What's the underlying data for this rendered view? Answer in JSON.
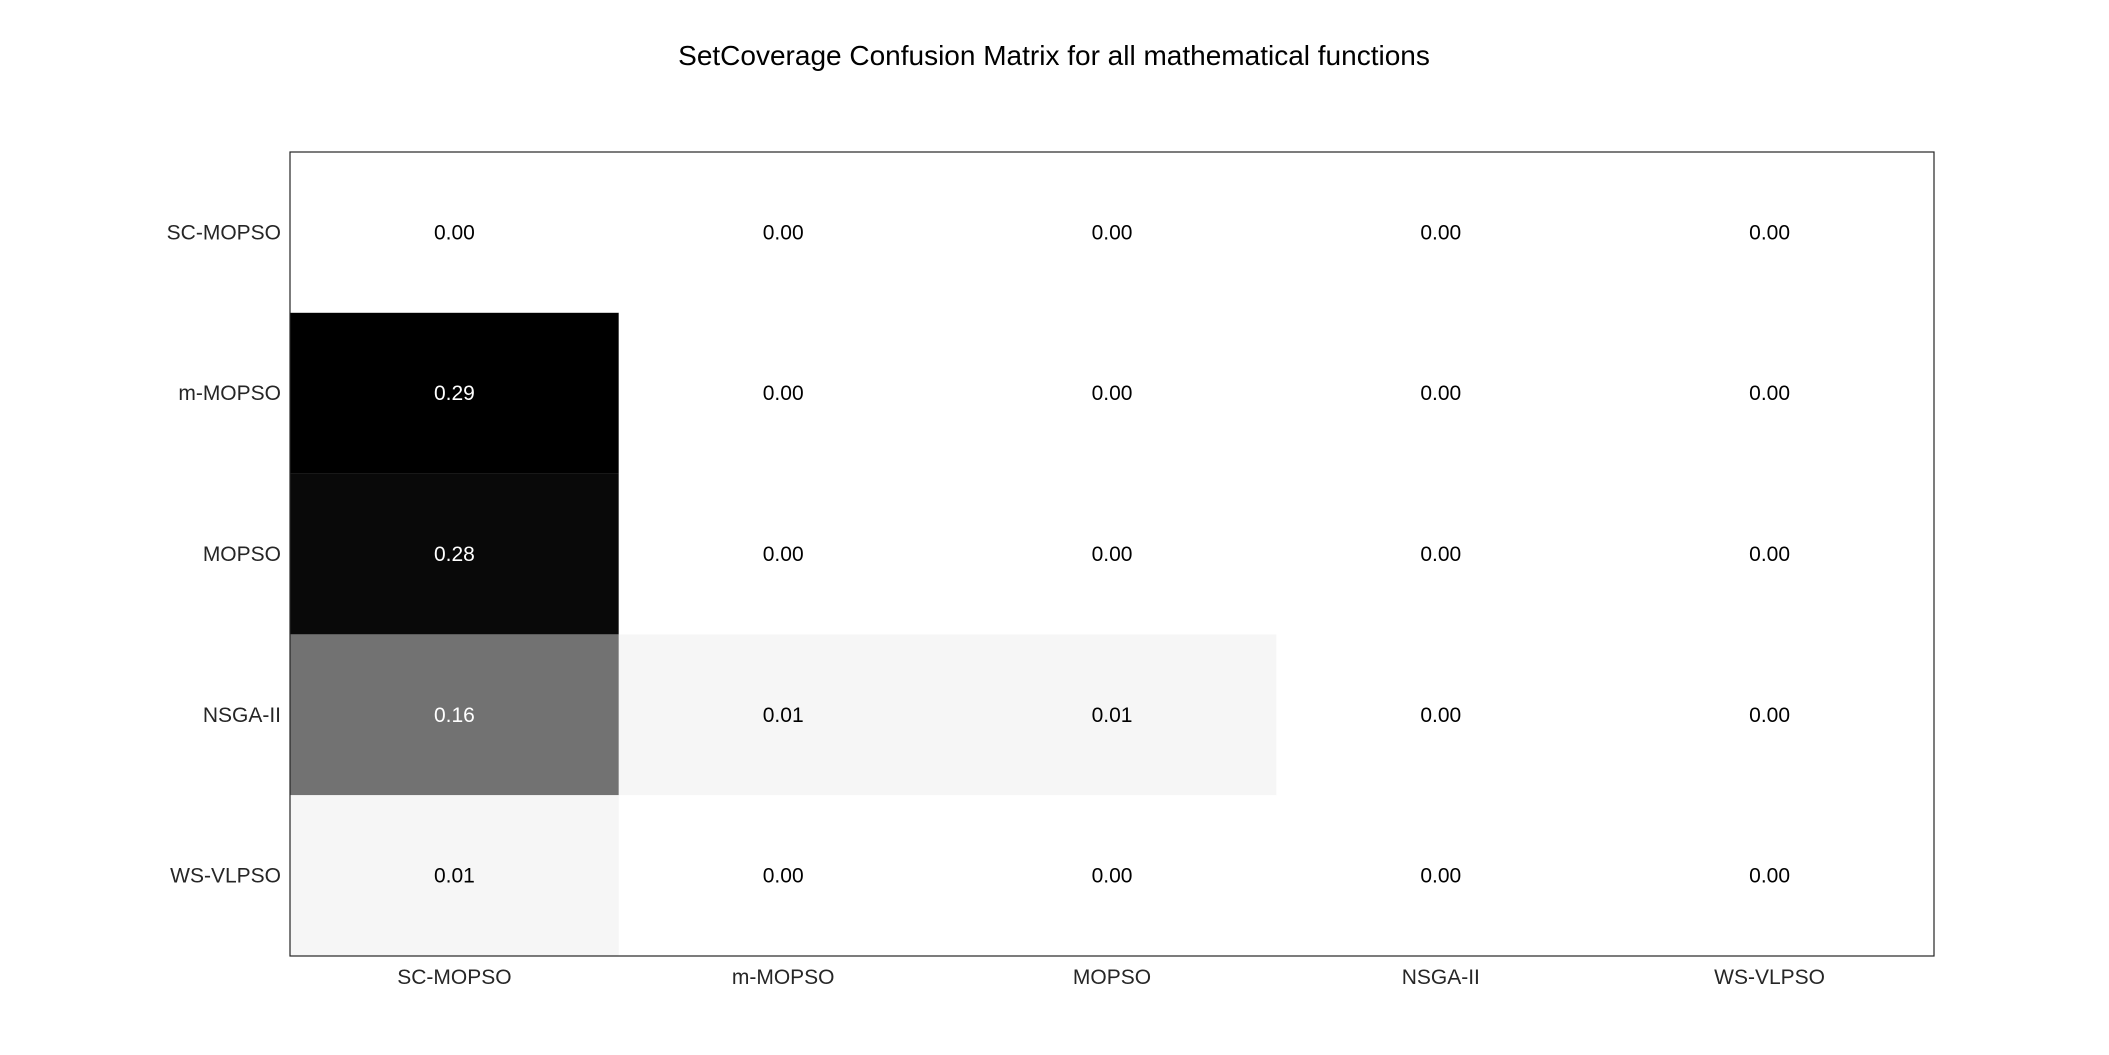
{
  "chart_data": {
    "type": "heatmap",
    "title": "SetCoverage Confusion Matrix for all mathematical functions",
    "xlabel": "",
    "ylabel": "",
    "x_categories": [
      "SC-MOPSO",
      "m-MOPSO",
      "MOPSO",
      "NSGA-II",
      "WS-VLPSO"
    ],
    "y_categories": [
      "SC-MOPSO",
      "m-MOPSO",
      "MOPSO",
      "NSGA-II",
      "WS-VLPSO"
    ],
    "values": [
      [
        0.0,
        0.0,
        0.0,
        0.0,
        0.0
      ],
      [
        0.29,
        0.0,
        0.0,
        0.0,
        0.0
      ],
      [
        0.28,
        0.0,
        0.0,
        0.0,
        0.0
      ],
      [
        0.16,
        0.01,
        0.01,
        0.0,
        0.0
      ],
      [
        0.01,
        0.0,
        0.0,
        0.0,
        0.0
      ]
    ],
    "cell_labels": [
      [
        "0.00",
        "0.00",
        "0.00",
        "0.00",
        "0.00"
      ],
      [
        "0.29",
        "0.00",
        "0.00",
        "0.00",
        "0.00"
      ],
      [
        "0.28",
        "0.00",
        "0.00",
        "0.00",
        "0.00"
      ],
      [
        "0.16",
        "0.01",
        "0.01",
        "0.00",
        "0.00"
      ],
      [
        "0.01",
        "0.00",
        "0.00",
        "0.00",
        "0.00"
      ]
    ],
    "colormap": {
      "low_color": "#ffffff",
      "high_color": "#000000",
      "range": [
        0.0,
        0.29
      ]
    },
    "grid": false,
    "legend": "none"
  }
}
